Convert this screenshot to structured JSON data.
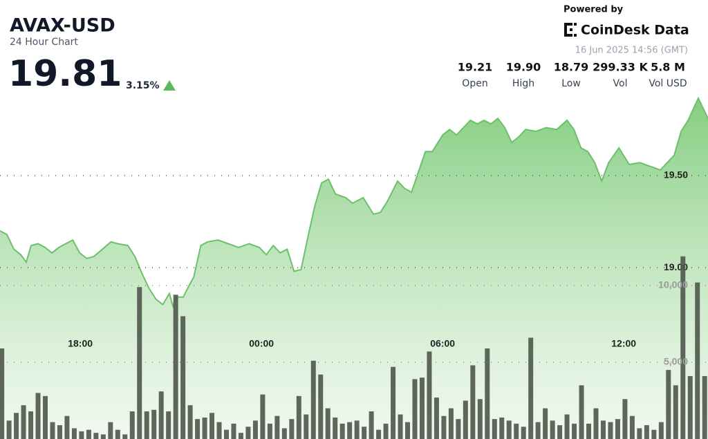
{
  "header": {
    "title": "AVAX-USD",
    "subtitle": "24 Hour Chart",
    "price": "19.81",
    "change": "3.15%",
    "powered_by": "Powered by",
    "brand": "CoinDesk Data",
    "timestamp": "16 Jun 2025 14:56 (GMT)",
    "stats": [
      {
        "value": "19.21",
        "label": "Open"
      },
      {
        "value": "19.90",
        "label": "High"
      },
      {
        "value": "18.79",
        "label": "Low"
      },
      {
        "value": "299.33 K",
        "label": "Vol"
      },
      {
        "value": "5.8 M",
        "label": "Vol USD"
      }
    ]
  },
  "chart_data": [
    {
      "type": "area",
      "color": "#6cc06a",
      "grid": true,
      "xlim": [
        15.34,
        38.79
      ],
      "ylim": [
        18.07,
        19.95
      ],
      "xticks": [
        {
          "value": 18,
          "label": "18:00"
        },
        {
          "value": 24,
          "label": "00:00"
        },
        {
          "value": 30,
          "label": "06:00"
        },
        {
          "value": 36,
          "label": "12:00"
        }
      ],
      "yticks": [
        {
          "value": 19,
          "label": "19.00"
        },
        {
          "value": 19.5,
          "label": "19.50"
        }
      ],
      "x": [
        15.34,
        15.57,
        15.8,
        16.03,
        16.21,
        16.37,
        16.6,
        16.83,
        17.06,
        17.29,
        17.52,
        17.75,
        17.98,
        18.21,
        18.44,
        18.66,
        19.01,
        19.24,
        19.58,
        19.81,
        20.04,
        20.27,
        20.5,
        20.73,
        20.95,
        21.07,
        21.18,
        21.41,
        21.53,
        21.76,
        21.99,
        22.21,
        22.56,
        22.9,
        23.24,
        23.59,
        23.93,
        24.16,
        24.39,
        24.62,
        24.85,
        25.08,
        25.31,
        25.53,
        25.76,
        25.99,
        26.22,
        26.45,
        26.79,
        27.02,
        27.37,
        27.71,
        27.94,
        28.17,
        28.51,
        28.74,
        28.97,
        29.2,
        29.43,
        29.66,
        30,
        30.23,
        30.46,
        30.69,
        30.92,
        31.15,
        31.37,
        31.6,
        31.83,
        32.06,
        32.29,
        32.52,
        32.75,
        33.09,
        33.43,
        33.78,
        34.12,
        34.35,
        34.58,
        34.81,
        35.04,
        35.27,
        35.5,
        35.84,
        36.18,
        36.53,
        36.87,
        37.21,
        37.44,
        37.67,
        37.9,
        38.13,
        38.47,
        38.79
      ],
      "values": [
        19.2,
        19.18,
        19.1,
        19.07,
        19.03,
        19.12,
        19.13,
        19.11,
        19.08,
        19.11,
        19.13,
        19.15,
        19.08,
        19.05,
        19.06,
        19.09,
        19.14,
        19.13,
        19.12,
        19.06,
        18.97,
        18.89,
        18.83,
        18.8,
        18.86,
        18.79,
        18.84,
        18.84,
        18.88,
        18.95,
        19.12,
        19.14,
        19.15,
        19.13,
        19.11,
        19.13,
        19.11,
        19.07,
        19.12,
        19.08,
        19.1,
        18.98,
        18.99,
        19.16,
        19.33,
        19.46,
        19.48,
        19.4,
        19.38,
        19.35,
        19.38,
        19.29,
        19.3,
        19.36,
        19.47,
        19.43,
        19.41,
        19.52,
        19.63,
        19.63,
        19.72,
        19.75,
        19.72,
        19.76,
        19.8,
        19.78,
        19.8,
        19.78,
        19.81,
        19.76,
        19.68,
        19.71,
        19.75,
        19.74,
        19.76,
        19.75,
        19.8,
        19.75,
        19.65,
        19.63,
        19.57,
        19.47,
        19.57,
        19.65,
        19.56,
        19.57,
        19.55,
        19.53,
        19.57,
        19.61,
        19.74,
        19.8,
        19.92,
        19.81
      ]
    },
    {
      "type": "bar",
      "color": "#4f574c",
      "grid": true,
      "xlim": [
        15.34,
        38.79
      ],
      "ylim": [
        0,
        12500
      ],
      "yticks": [
        {
          "value": 5000,
          "label": "5,000"
        },
        {
          "value": 10000,
          "label": "10,000"
        }
      ],
      "x": [
        15.4,
        15.64,
        15.88,
        16.12,
        16.36,
        16.6,
        16.84,
        17.08,
        17.32,
        17.56,
        17.8,
        18.04,
        18.28,
        18.52,
        18.76,
        19,
        19.24,
        19.48,
        19.72,
        19.96,
        20.2,
        20.44,
        20.68,
        20.92,
        21.16,
        21.4,
        21.64,
        21.88,
        22.12,
        22.36,
        22.6,
        22.84,
        23.08,
        23.32,
        23.56,
        23.8,
        24.04,
        24.28,
        24.52,
        24.76,
        25,
        25.24,
        25.48,
        25.72,
        25.96,
        26.2,
        26.44,
        26.68,
        26.92,
        27.16,
        27.4,
        27.64,
        27.88,
        28.12,
        28.36,
        28.6,
        28.84,
        29.08,
        29.32,
        29.56,
        29.8,
        30.04,
        30.28,
        30.52,
        30.76,
        31,
        31.24,
        31.48,
        31.72,
        31.96,
        32.2,
        32.44,
        32.68,
        32.92,
        33.16,
        33.4,
        33.64,
        33.88,
        34.12,
        34.36,
        34.6,
        34.84,
        35.08,
        35.32,
        35.56,
        35.8,
        36.04,
        36.28,
        36.52,
        36.76,
        37,
        37.24,
        37.48,
        37.72,
        37.96,
        38.2,
        38.44,
        38.68
      ],
      "values": [
        5900,
        1200,
        1700,
        2200,
        1800,
        3000,
        2800,
        1100,
        900,
        1500,
        700,
        500,
        600,
        400,
        300,
        1100,
        600,
        300,
        1800,
        9900,
        1800,
        1900,
        3100,
        1800,
        9400,
        8000,
        2200,
        1300,
        1400,
        1700,
        1100,
        600,
        1000,
        400,
        800,
        1200,
        2900,
        1000,
        1500,
        700,
        1300,
        2800,
        1600,
        5100,
        4200,
        2000,
        1400,
        1000,
        1100,
        1200,
        800,
        1800,
        600,
        1000,
        4700,
        1600,
        1100,
        3900,
        4000,
        5700,
        2700,
        1500,
        2000,
        1300,
        2500,
        4800,
        2600,
        5900,
        1300,
        1400,
        1200,
        1000,
        800,
        6600,
        1100,
        2000,
        1200,
        900,
        1600,
        1000,
        3500,
        1000,
        2000,
        1200,
        1100,
        1300,
        2600,
        1500,
        700,
        900,
        600,
        1100,
        4500,
        3500,
        11900,
        4100,
        10200,
        4100
      ]
    }
  ]
}
